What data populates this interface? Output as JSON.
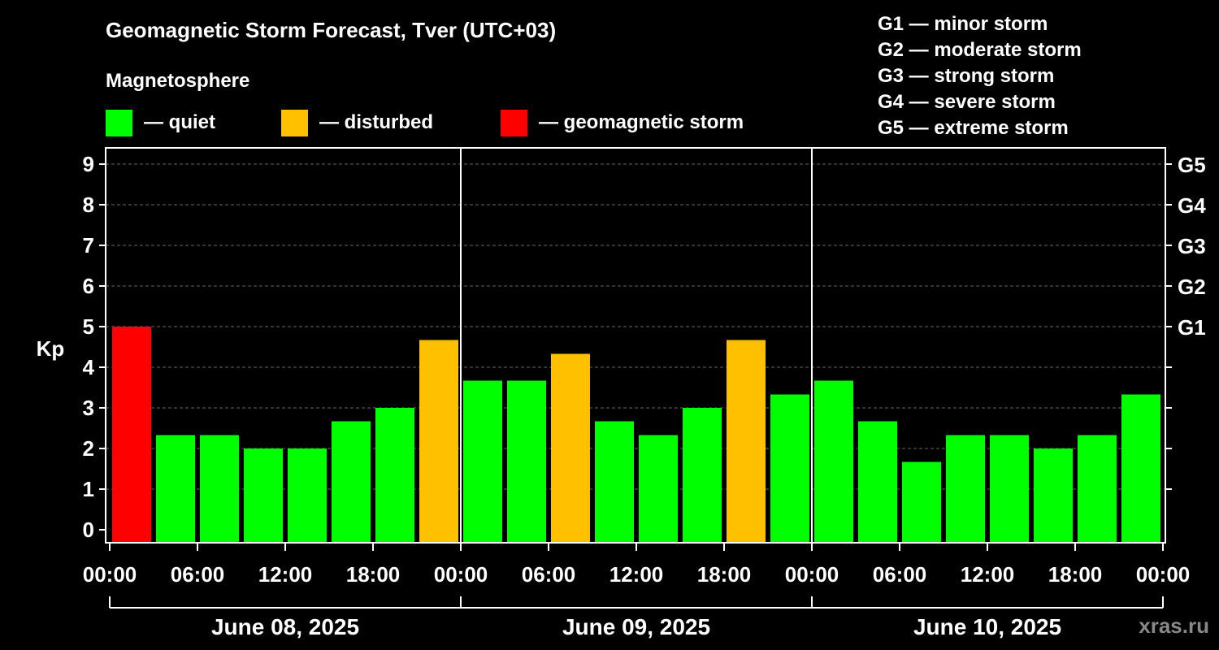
{
  "title": "Geomagnetic Storm Forecast, Tver (UTC+03)",
  "legend": {
    "heading": "Magnetosphere",
    "items": [
      {
        "label": "— quiet",
        "color": "#00ff00"
      },
      {
        "label": "— disturbed",
        "color": "#ffc000"
      },
      {
        "label": "— geomagnetic storm",
        "color": "#ff0000"
      }
    ]
  },
  "storm_scale": [
    "G1 — minor storm",
    "G2 — moderate storm",
    "G3 — strong storm",
    "G4 — severe storm",
    "G5 — extreme storm"
  ],
  "watermark": "xras.ru",
  "chart_data": {
    "type": "bar",
    "title": "Geomagnetic Storm Forecast, Tver (UTC+03)",
    "ylabel": "Kp",
    "ylim": [
      0,
      9
    ],
    "yticks": [
      "0",
      "1",
      "2",
      "3",
      "4",
      "5",
      "6",
      "7",
      "8",
      "9"
    ],
    "right_ticks": [
      {
        "value": 5,
        "label": "G1"
      },
      {
        "value": 6,
        "label": "G2"
      },
      {
        "value": 7,
        "label": "G3"
      },
      {
        "value": 8,
        "label": "G4"
      },
      {
        "value": 9,
        "label": "G5"
      }
    ],
    "xtick_labels": [
      "00:00",
      "06:00",
      "12:00",
      "18:00",
      "00:00",
      "06:00",
      "12:00",
      "18:00",
      "00:00",
      "06:00",
      "12:00",
      "18:00",
      "00:00"
    ],
    "days": [
      "June 08, 2025",
      "June 09, 2025",
      "June 10, 2025"
    ],
    "bars_per_day": 8,
    "values": [
      5.0,
      2.33,
      2.33,
      2.0,
      2.0,
      2.67,
      3.0,
      4.67,
      3.67,
      3.67,
      4.33,
      2.67,
      2.33,
      3.0,
      4.67,
      3.33,
      3.67,
      2.67,
      1.67,
      2.33,
      2.33,
      2.0,
      2.33,
      3.33
    ],
    "states": [
      "storm",
      "quiet",
      "quiet",
      "quiet",
      "quiet",
      "quiet",
      "quiet",
      "disturbed",
      "quiet",
      "quiet",
      "disturbed",
      "quiet",
      "quiet",
      "quiet",
      "disturbed",
      "quiet",
      "quiet",
      "quiet",
      "quiet",
      "quiet",
      "quiet",
      "quiet",
      "quiet",
      "quiet"
    ],
    "colors": {
      "quiet": "#00ff00",
      "disturbed": "#ffc000",
      "storm": "#ff0000"
    }
  }
}
